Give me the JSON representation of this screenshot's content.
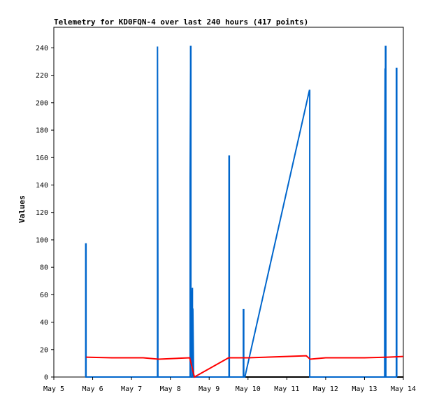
{
  "chart_data": {
    "type": "line",
    "title": "Telemetry for KD0FQN-4 over last 240 hours (417 points)",
    "xlabel": "",
    "ylabel": "Values",
    "xlim": [
      0,
      9
    ],
    "ylim": [
      0,
      255
    ],
    "grid": false,
    "x_ticks": [
      {
        "value": 0,
        "label": "May 5"
      },
      {
        "value": 1,
        "label": "May 6"
      },
      {
        "value": 2,
        "label": "May 7"
      },
      {
        "value": 3,
        "label": "May 8"
      },
      {
        "value": 4,
        "label": "May 9"
      },
      {
        "value": 5,
        "label": "May 10"
      },
      {
        "value": 6,
        "label": "May 11"
      },
      {
        "value": 7,
        "label": "May 12"
      },
      {
        "value": 8,
        "label": "May 13"
      },
      {
        "value": 9,
        "label": "May 14"
      }
    ],
    "y_ticks": [
      {
        "value": 0,
        "label": "0"
      },
      {
        "value": 20,
        "label": "20"
      },
      {
        "value": 40,
        "label": "40"
      },
      {
        "value": 60,
        "label": "60"
      },
      {
        "value": 80,
        "label": "80"
      },
      {
        "value": 100,
        "label": "100"
      },
      {
        "value": 120,
        "label": "120"
      },
      {
        "value": 140,
        "label": "140"
      },
      {
        "value": 160,
        "label": "160"
      },
      {
        "value": 180,
        "label": "180"
      },
      {
        "value": 200,
        "label": "200"
      },
      {
        "value": 220,
        "label": "220"
      },
      {
        "value": 240,
        "label": "240"
      }
    ],
    "series": [
      {
        "color": "#000000",
        "x": [
          0.82,
          5.0,
          9.0
        ],
        "y": [
          0,
          0,
          0
        ]
      },
      {
        "color": "#0066cc",
        "x": [
          0.82,
          0.82,
          0.83,
          0.83,
          2.67,
          2.67,
          2.68,
          2.68,
          2.69,
          2.69,
          3.51,
          3.51,
          3.52,
          3.52,
          3.53,
          3.53,
          3.54,
          3.54,
          3.55,
          3.55,
          3.56,
          3.56,
          3.57,
          3.57,
          3.58,
          3.58,
          3.6,
          3.6,
          3.61,
          3.61,
          3.62,
          3.62,
          4.51,
          4.51,
          4.52,
          4.52,
          4.88,
          4.88,
          4.89,
          4.89,
          4.92,
          6.58,
          6.59,
          6.59,
          8.52,
          8.52,
          8.53,
          8.53,
          8.54,
          8.54,
          8.55,
          8.55,
          8.56,
          8.56,
          8.57,
          8.57,
          8.82,
          8.82,
          8.83,
          8.83,
          8.84,
          8.84
        ],
        "y": [
          0,
          97,
          97,
          0,
          0,
          241,
          65,
          0,
          0,
          0,
          0,
          145,
          225,
          241,
          241,
          25,
          10,
          45,
          30,
          0,
          0,
          58,
          65,
          0,
          0,
          50,
          0,
          0,
          0,
          0,
          0,
          0,
          0,
          161,
          161,
          0,
          0,
          49,
          49,
          0,
          0,
          209,
          209,
          0,
          0,
          128,
          225,
          120,
          50,
          241,
          241,
          0,
          0,
          0,
          0,
          0,
          0,
          225,
          225,
          0,
          0,
          0
        ]
      },
      {
        "color": "#ff0000",
        "x": [
          0.83,
          1.5,
          2.3,
          2.7,
          3.5,
          3.62,
          4.5,
          5.0,
          6.0,
          6.5,
          6.6,
          7.0,
          8.0,
          8.6,
          9.0
        ],
        "y": [
          14.5,
          14,
          14,
          13,
          14,
          0,
          14,
          14,
          15,
          15.5,
          13,
          14,
          14,
          14.5,
          15
        ]
      }
    ]
  }
}
